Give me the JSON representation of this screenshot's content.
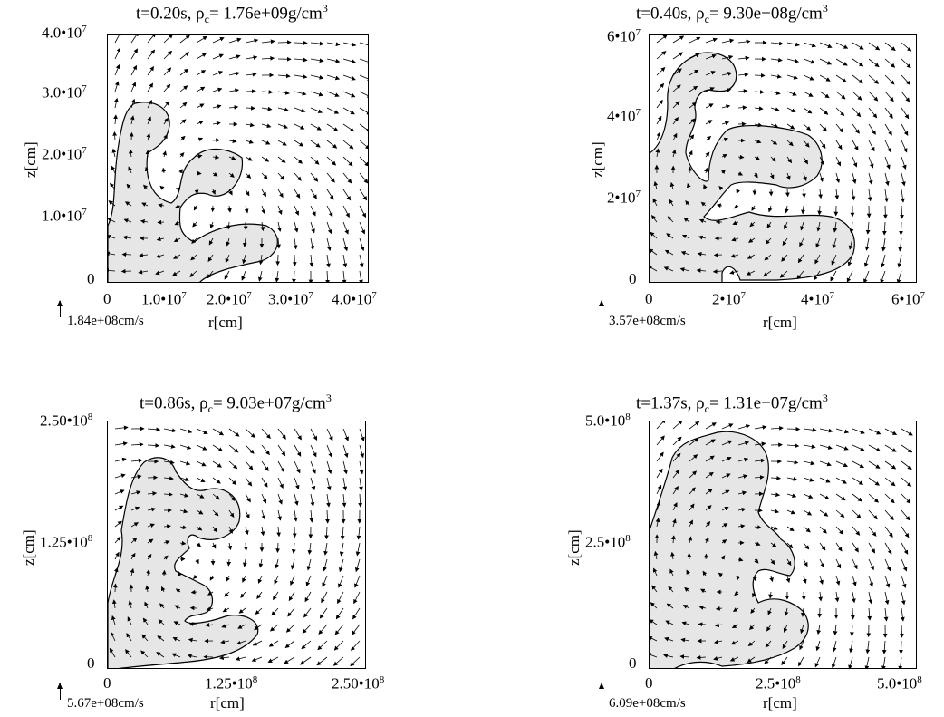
{
  "panels": [
    {
      "title_time": "t=0.20s, ",
      "title_rho": "ρ",
      "title_sub": "c",
      "title_val": "= 1.76e+09g/cm",
      "title_sup": "3",
      "ylabel": "z[cm]",
      "xlabel": "r[cm]",
      "yticks": [
        {
          "base": "0",
          "exp": ""
        },
        {
          "base": "1.0•10",
          "exp": "7"
        },
        {
          "base": "2.0•10",
          "exp": "7"
        },
        {
          "base": "3.0•10",
          "exp": "7"
        },
        {
          "base": "4.0•10",
          "exp": "7"
        }
      ],
      "xticks": [
        {
          "base": "0",
          "exp": ""
        },
        {
          "base": "1.0•10",
          "exp": "7"
        },
        {
          "base": "2.0•10",
          "exp": "7"
        },
        {
          "base": "3.0•10",
          "exp": "7"
        },
        {
          "base": "4.0•10",
          "exp": "7"
        }
      ],
      "velocity_ref": "1.84e+08cm/s"
    },
    {
      "title_time": "t=0.40s, ",
      "title_rho": "ρ",
      "title_sub": "c",
      "title_val": "= 9.30e+08g/cm",
      "title_sup": "3",
      "ylabel": "z[cm]",
      "xlabel": "r[cm]",
      "yticks": [
        {
          "base": "0",
          "exp": ""
        },
        {
          "base": "2•10",
          "exp": "7"
        },
        {
          "base": "4•10",
          "exp": "7"
        },
        {
          "base": "6•10",
          "exp": "7"
        }
      ],
      "xticks": [
        {
          "base": "0",
          "exp": ""
        },
        {
          "base": "2•10",
          "exp": "7"
        },
        {
          "base": "4•10",
          "exp": "7"
        },
        {
          "base": "6•10",
          "exp": "7"
        }
      ],
      "velocity_ref": "3.57e+08cm/s"
    },
    {
      "title_time": "t=0.86s, ",
      "title_rho": "ρ",
      "title_sub": "c",
      "title_val": "= 9.03e+07g/cm",
      "title_sup": "3",
      "ylabel": "z[cm]",
      "xlabel": "r[cm]",
      "yticks": [
        {
          "base": "0",
          "exp": ""
        },
        {
          "base": "1.25•10",
          "exp": "8"
        },
        {
          "base": "2.50•10",
          "exp": "8"
        }
      ],
      "xticks": [
        {
          "base": "0",
          "exp": ""
        },
        {
          "base": "1.25•10",
          "exp": "8"
        },
        {
          "base": "2.50•10",
          "exp": "8"
        }
      ],
      "velocity_ref": "5.67e+08cm/s"
    },
    {
      "title_time": "t=1.37s, ",
      "title_rho": "ρ",
      "title_sub": "c",
      "title_val": "= 1.31e+07g/cm",
      "title_sup": "3",
      "ylabel": "z[cm]",
      "xlabel": "r[cm]",
      "yticks": [
        {
          "base": "0",
          "exp": ""
        },
        {
          "base": "2.5•10",
          "exp": "8"
        },
        {
          "base": "5.0•10",
          "exp": "8"
        }
      ],
      "xticks": [
        {
          "base": "0",
          "exp": ""
        },
        {
          "base": "2.5•10",
          "exp": "8"
        },
        {
          "base": "5.0•10",
          "exp": "8"
        }
      ],
      "velocity_ref": "6.09e+08cm/s"
    }
  ]
}
